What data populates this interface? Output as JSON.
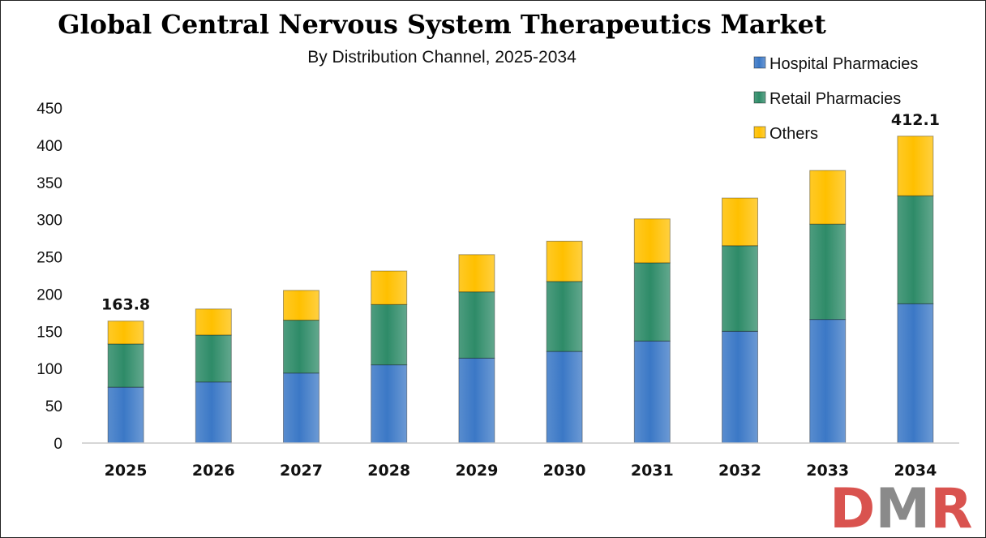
{
  "chart_data": {
    "type": "bar",
    "stacked": true,
    "title": "Global Central Nervous System Therapeutics Market",
    "subtitle": "By Distribution Channel, 2025-2034",
    "categories": [
      "2025",
      "2026",
      "2027",
      "2028",
      "2029",
      "2030",
      "2031",
      "2032",
      "2033",
      "2034"
    ],
    "series": [
      {
        "name": "Hospital Pharmacies",
        "color": "#3b78c6",
        "values": [
          75,
          82,
          94,
          105,
          114,
          123,
          137,
          150,
          166,
          187
        ]
      },
      {
        "name": "Retail Pharmacies",
        "color": "#2e8b68",
        "values": [
          58,
          63,
          71,
          81,
          89,
          94,
          105,
          115,
          128,
          145
        ]
      },
      {
        "name": "Others",
        "color": "#ffc000",
        "values": [
          30.8,
          35,
          40,
          45,
          50,
          54,
          59,
          64,
          72,
          80.1
        ]
      }
    ],
    "yticks": [
      "0",
      "50",
      "100",
      "150",
      "200",
      "250",
      "300",
      "350",
      "400",
      "450"
    ],
    "ylim": [
      0,
      450
    ],
    "annotations": [
      {
        "category": "2025",
        "text": "163.8"
      },
      {
        "category": "2034",
        "text": "412.1"
      }
    ],
    "legend_position": "top-right",
    "grid": false
  },
  "logo": {
    "text": "DMR",
    "colors": {
      "d": "#d9534f",
      "m": "#8a8a8a",
      "r": "#d9534f"
    }
  }
}
